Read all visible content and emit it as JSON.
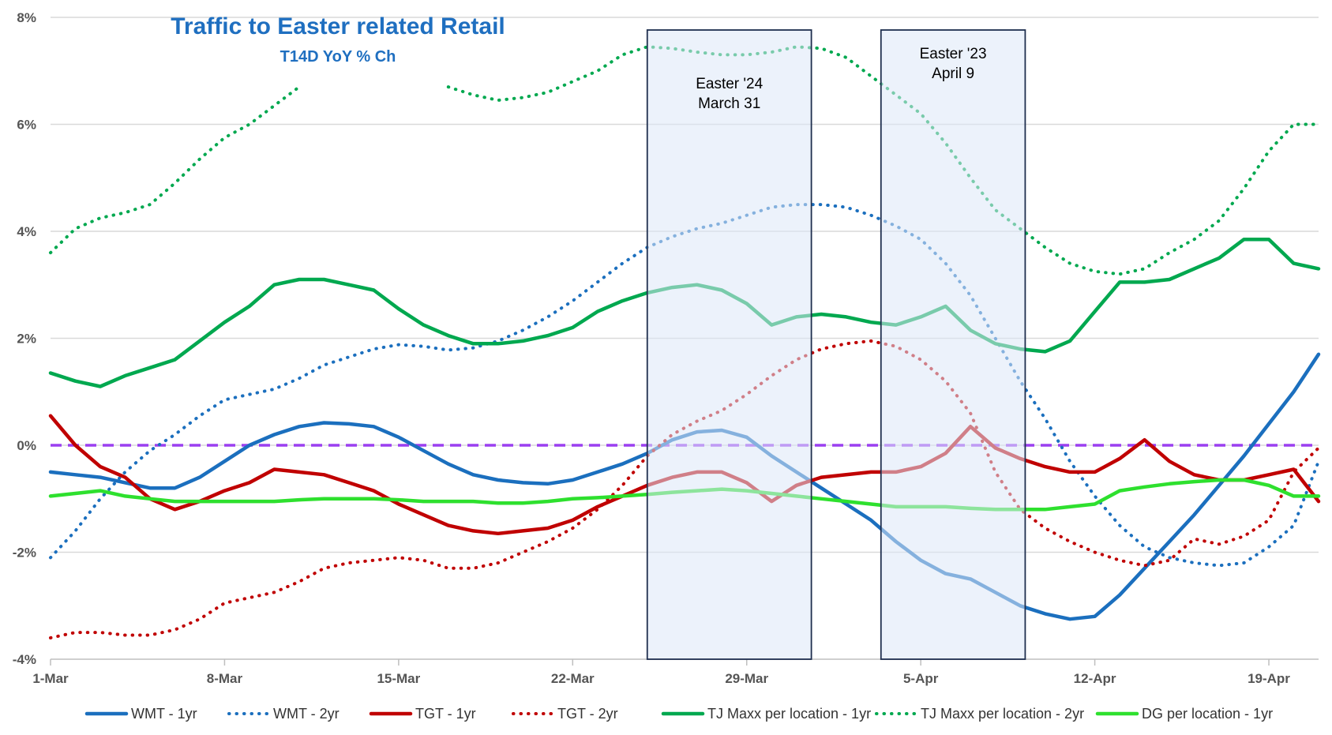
{
  "chart_data": {
    "type": "line",
    "title": "Traffic to Easter related Retail",
    "subtitle": "T14D YoY % Ch",
    "title_color": "#1f6fc0",
    "ylim": [
      -4,
      8
    ],
    "y_ticks": [
      -4,
      -2,
      0,
      2,
      4,
      6,
      8
    ],
    "y_tick_labels": [
      "-4%",
      "-2%",
      "0%",
      "2%",
      "4%",
      "6%",
      "8%"
    ],
    "x_range": [
      0,
      51
    ],
    "x_ticks": [
      0,
      7,
      14,
      21,
      28,
      35,
      42,
      49
    ],
    "x_tick_labels": [
      "1-Mar",
      "8-Mar",
      "15-Mar",
      "22-Mar",
      "29-Mar",
      "5-Apr",
      "12-Apr",
      "19-Apr"
    ],
    "reference_line": {
      "y": 0,
      "color": "#9b3ff0"
    },
    "shaded_regions": [
      {
        "x0": 24,
        "x1": 30.6,
        "label1": "Easter '24",
        "label2": "March 31"
      },
      {
        "x0": 33.4,
        "x1": 39.2,
        "label1": "Easter '23",
        "label2": "April 9"
      }
    ],
    "series": [
      {
        "name": "WMT - 1yr",
        "color": "#1b6fbe",
        "dash": "solid",
        "values": [
          -0.5,
          -0.55,
          -0.6,
          -0.7,
          -0.8,
          -0.8,
          -0.6,
          -0.3,
          0.0,
          0.2,
          0.35,
          0.42,
          0.4,
          0.35,
          0.15,
          -0.1,
          -0.35,
          -0.55,
          -0.65,
          -0.7,
          -0.72,
          -0.65,
          -0.5,
          -0.35,
          -0.15,
          0.1,
          0.25,
          0.28,
          0.15,
          -0.2,
          -0.5,
          -0.8,
          -1.1,
          -1.4,
          -1.8,
          -2.15,
          -2.4,
          -2.5,
          -2.75,
          -3.0,
          -3.15,
          -3.25,
          -3.2,
          -2.8,
          -2.3,
          -1.8,
          -1.3,
          -0.75,
          -0.2,
          0.4,
          1.0,
          1.7
        ]
      },
      {
        "name": "WMT - 2yr",
        "color": "#1b6fbe",
        "dash": "dot",
        "values": [
          -2.1,
          -1.6,
          -1.0,
          -0.5,
          -0.1,
          0.2,
          0.55,
          0.85,
          0.95,
          1.05,
          1.25,
          1.5,
          1.65,
          1.8,
          1.88,
          1.85,
          1.78,
          1.82,
          1.95,
          2.15,
          2.4,
          2.7,
          3.05,
          3.4,
          3.7,
          3.9,
          4.05,
          4.15,
          4.3,
          4.45,
          4.5,
          4.5,
          4.45,
          4.3,
          4.1,
          3.85,
          3.4,
          2.8,
          2.0,
          1.2,
          0.5,
          -0.3,
          -0.95,
          -1.5,
          -1.9,
          -2.1,
          -2.2,
          -2.25,
          -2.2,
          -1.9,
          -1.5,
          -0.3
        ]
      },
      {
        "name": "TGT - 1yr",
        "color": "#c00000",
        "dash": "solid",
        "values": [
          0.55,
          0.0,
          -0.4,
          -0.6,
          -1.0,
          -1.2,
          -1.05,
          -0.85,
          -0.7,
          -0.45,
          -0.5,
          -0.55,
          -0.7,
          -0.85,
          -1.1,
          -1.3,
          -1.5,
          -1.6,
          -1.65,
          -1.6,
          -1.55,
          -1.4,
          -1.15,
          -0.95,
          -0.75,
          -0.6,
          -0.5,
          -0.5,
          -0.7,
          -1.05,
          -0.75,
          -0.6,
          -0.55,
          -0.5,
          -0.5,
          -0.4,
          -0.15,
          0.35,
          -0.05,
          -0.25,
          -0.4,
          -0.5,
          -0.5,
          -0.25,
          0.1,
          -0.3,
          -0.55,
          -0.65,
          -0.65,
          -0.55,
          -0.45,
          -1.05
        ]
      },
      {
        "name": "TGT - 2yr",
        "color": "#c00000",
        "dash": "dot",
        "values": [
          -3.6,
          -3.5,
          -3.5,
          -3.55,
          -3.55,
          -3.45,
          -3.25,
          -2.95,
          -2.85,
          -2.75,
          -2.55,
          -2.3,
          -2.2,
          -2.15,
          -2.1,
          -2.15,
          -2.3,
          -2.3,
          -2.2,
          -2.0,
          -1.8,
          -1.55,
          -1.2,
          -0.75,
          -0.2,
          0.2,
          0.45,
          0.65,
          0.95,
          1.3,
          1.6,
          1.8,
          1.9,
          1.95,
          1.85,
          1.6,
          1.2,
          0.6,
          -0.5,
          -1.2,
          -1.55,
          -1.8,
          -2.0,
          -2.15,
          -2.25,
          -2.15,
          -1.75,
          -1.85,
          -1.7,
          -1.4,
          -0.5,
          -0.05
        ]
      },
      {
        "name": "TJ Maxx per location - 1yr",
        "color": "#00a84f",
        "dash": "solid",
        "values": [
          1.35,
          1.2,
          1.1,
          1.3,
          1.45,
          1.6,
          1.95,
          2.3,
          2.6,
          3.0,
          3.1,
          3.1,
          3.0,
          2.9,
          2.55,
          2.25,
          2.05,
          1.9,
          1.9,
          1.95,
          2.05,
          2.2,
          2.5,
          2.7,
          2.85,
          2.95,
          3.0,
          2.9,
          2.65,
          2.25,
          2.4,
          2.45,
          2.4,
          2.3,
          2.25,
          2.4,
          2.6,
          2.15,
          1.9,
          1.8,
          1.75,
          1.95,
          2.5,
          3.05,
          3.05,
          3.1,
          3.3,
          3.5,
          3.85,
          3.85,
          3.4,
          3.3
        ]
      },
      {
        "name": "TJ Maxx per location - 2yr",
        "color": "#00a84f",
        "dash": "dot",
        "values": [
          3.6,
          4.05,
          4.25,
          4.35,
          4.5,
          4.9,
          5.35,
          5.75,
          6.0,
          6.35,
          6.7,
          null,
          null,
          null,
          null,
          null,
          6.7,
          6.55,
          6.45,
          6.5,
          6.6,
          6.8,
          7.0,
          7.3,
          7.45,
          7.42,
          7.35,
          7.3,
          7.3,
          7.35,
          7.45,
          7.42,
          7.25,
          6.9,
          6.55,
          6.2,
          5.65,
          5.0,
          4.4,
          4.05,
          3.7,
          3.4,
          3.25,
          3.2,
          3.3,
          3.6,
          3.85,
          4.2,
          4.8,
          5.5,
          6.0,
          6.0
        ]
      },
      {
        "name": "DG per location - 1yr",
        "color": "#2ee02e",
        "dash": "solid",
        "values": [
          -0.95,
          -0.9,
          -0.85,
          -0.95,
          -1.0,
          -1.05,
          -1.05,
          -1.05,
          -1.05,
          -1.05,
          -1.02,
          -1.0,
          -1.0,
          -1.0,
          -1.02,
          -1.05,
          -1.05,
          -1.05,
          -1.08,
          -1.08,
          -1.05,
          -1.0,
          -0.98,
          -0.95,
          -0.92,
          -0.88,
          -0.85,
          -0.82,
          -0.85,
          -0.9,
          -0.95,
          -1.0,
          -1.05,
          -1.1,
          -1.15,
          -1.15,
          -1.15,
          -1.18,
          -1.2,
          -1.2,
          -1.2,
          -1.15,
          -1.1,
          -0.85,
          -0.78,
          -0.72,
          -0.68,
          -0.65,
          -0.65,
          -0.75,
          -0.95,
          -0.95
        ]
      }
    ]
  }
}
